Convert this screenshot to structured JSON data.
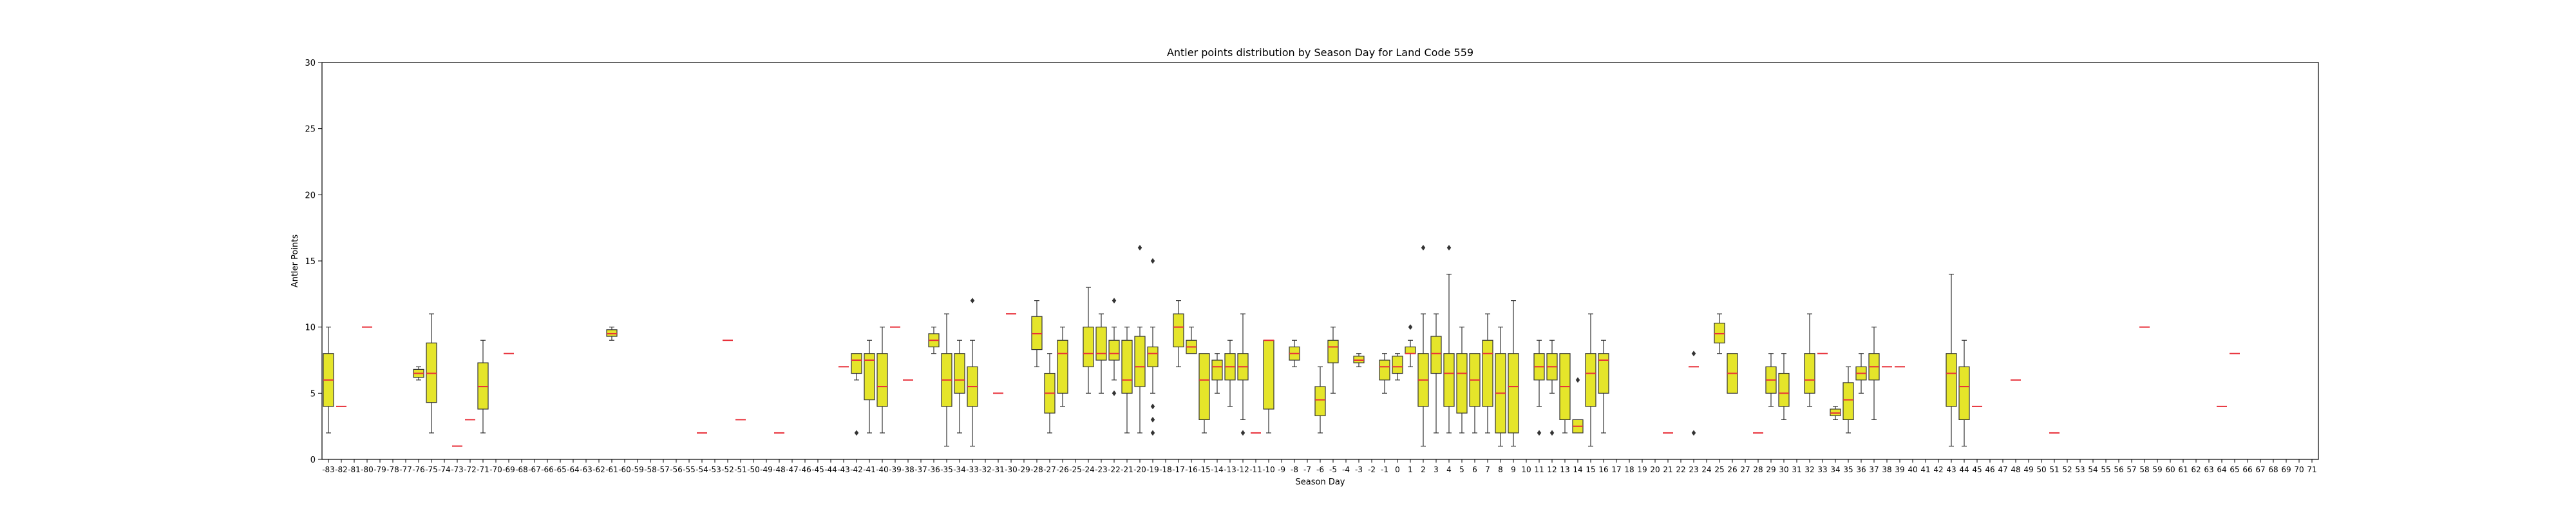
{
  "chart_data": {
    "type": "box",
    "title": "Antler points distribution by Season Day for Land Code 559",
    "xlabel": "Season Day",
    "ylabel": "Antler Points",
    "ylim": [
      0,
      30
    ],
    "yticks": [
      0,
      5,
      10,
      15,
      20,
      25,
      30
    ],
    "x_range": [
      -83,
      71
    ],
    "grid": false,
    "colors": {
      "box_fill": "#e5e52a",
      "median": "#e8303a",
      "edge": "#333333",
      "axis": "#000000"
    },
    "boxes": [
      {
        "day": -83,
        "q1": 4,
        "med": 6,
        "q3": 8,
        "lo": 2,
        "hi": 10
      },
      {
        "day": -82,
        "q1": 4,
        "med": 4,
        "q3": 4,
        "lo": 4,
        "hi": 4
      },
      {
        "day": -80,
        "q1": 10,
        "med": 10,
        "q3": 10,
        "lo": 10,
        "hi": 10
      },
      {
        "day": -76,
        "q1": 6.2,
        "med": 6.5,
        "q3": 6.8,
        "lo": 6,
        "hi": 7
      },
      {
        "day": -75,
        "q1": 4.3,
        "med": 6.5,
        "q3": 8.8,
        "lo": 2,
        "hi": 11
      },
      {
        "day": -73,
        "q1": 1,
        "med": 1,
        "q3": 1,
        "lo": 1,
        "hi": 1
      },
      {
        "day": -72,
        "q1": 3,
        "med": 3,
        "q3": 3,
        "lo": 3,
        "hi": 3
      },
      {
        "day": -71,
        "q1": 3.8,
        "med": 5.5,
        "q3": 7.3,
        "lo": 2,
        "hi": 9
      },
      {
        "day": -69,
        "q1": 8,
        "med": 8,
        "q3": 8,
        "lo": 8,
        "hi": 8
      },
      {
        "day": -61,
        "q1": 9.3,
        "med": 9.5,
        "q3": 9.8,
        "lo": 9,
        "hi": 10
      },
      {
        "day": -54,
        "q1": 2,
        "med": 2,
        "q3": 2,
        "lo": 2,
        "hi": 2
      },
      {
        "day": -52,
        "q1": 9,
        "med": 9,
        "q3": 9,
        "lo": 9,
        "hi": 9
      },
      {
        "day": -51,
        "q1": 3,
        "med": 3,
        "q3": 3,
        "lo": 3,
        "hi": 3
      },
      {
        "day": -48,
        "q1": 2,
        "med": 2,
        "q3": 2,
        "lo": 2,
        "hi": 2
      },
      {
        "day": -43,
        "q1": 7,
        "med": 7,
        "q3": 7,
        "lo": 7,
        "hi": 7
      },
      {
        "day": -42,
        "q1": 6.5,
        "med": 7.5,
        "q3": 8,
        "lo": 6,
        "hi": 8,
        "fliers": [
          2
        ]
      },
      {
        "day": -41,
        "q1": 4.5,
        "med": 7.5,
        "q3": 8,
        "lo": 2,
        "hi": 9
      },
      {
        "day": -40,
        "q1": 4,
        "med": 5.5,
        "q3": 8,
        "lo": 2,
        "hi": 10
      },
      {
        "day": -39,
        "q1": 10,
        "med": 10,
        "q3": 10,
        "lo": 10,
        "hi": 10
      },
      {
        "day": -38,
        "q1": 6,
        "med": 6,
        "q3": 6,
        "lo": 6,
        "hi": 6
      },
      {
        "day": -36,
        "q1": 8.5,
        "med": 9,
        "q3": 9.5,
        "lo": 8,
        "hi": 10
      },
      {
        "day": -35,
        "q1": 4,
        "med": 6,
        "q3": 8,
        "lo": 1,
        "hi": 11
      },
      {
        "day": -34,
        "q1": 5,
        "med": 6,
        "q3": 8,
        "lo": 2,
        "hi": 9
      },
      {
        "day": -33,
        "q1": 4,
        "med": 5.5,
        "q3": 7,
        "lo": 1,
        "hi": 9,
        "fliers": [
          12
        ]
      },
      {
        "day": -31,
        "q1": 5,
        "med": 5,
        "q3": 5,
        "lo": 5,
        "hi": 5
      },
      {
        "day": -30,
        "q1": 11,
        "med": 11,
        "q3": 11,
        "lo": 11,
        "hi": 11
      },
      {
        "day": -28,
        "q1": 8.3,
        "med": 9.5,
        "q3": 10.8,
        "lo": 7,
        "hi": 12
      },
      {
        "day": -27,
        "q1": 3.5,
        "med": 5,
        "q3": 6.5,
        "lo": 2,
        "hi": 8
      },
      {
        "day": -26,
        "q1": 5,
        "med": 8,
        "q3": 9,
        "lo": 4,
        "hi": 10
      },
      {
        "day": -24,
        "q1": 7,
        "med": 8,
        "q3": 10,
        "lo": 5,
        "hi": 13
      },
      {
        "day": -23,
        "q1": 7.5,
        "med": 8,
        "q3": 10,
        "lo": 5,
        "hi": 11
      },
      {
        "day": -22,
        "q1": 7.5,
        "med": 8,
        "q3": 9,
        "lo": 6,
        "hi": 10,
        "fliers": [
          12,
          5
        ]
      },
      {
        "day": -21,
        "q1": 5,
        "med": 6,
        "q3": 9,
        "lo": 2,
        "hi": 10
      },
      {
        "day": -20,
        "q1": 5.5,
        "med": 7,
        "q3": 9.3,
        "lo": 2,
        "hi": 10,
        "fliers": [
          16
        ]
      },
      {
        "day": -19,
        "q1": 7,
        "med": 8,
        "q3": 8.5,
        "lo": 5,
        "hi": 10,
        "fliers": [
          15,
          4,
          3,
          2
        ]
      },
      {
        "day": -17,
        "q1": 8.5,
        "med": 10,
        "q3": 11,
        "lo": 7,
        "hi": 12
      },
      {
        "day": -16,
        "q1": 8,
        "med": 8.5,
        "q3": 9,
        "lo": 8,
        "hi": 10
      },
      {
        "day": -15,
        "q1": 3,
        "med": 6,
        "q3": 8,
        "lo": 2,
        "hi": 8
      },
      {
        "day": -14,
        "q1": 6,
        "med": 7,
        "q3": 7.5,
        "lo": 5,
        "hi": 8
      },
      {
        "day": -13,
        "q1": 6,
        "med": 7,
        "q3": 8,
        "lo": 4,
        "hi": 9
      },
      {
        "day": -12,
        "q1": 6,
        "med": 7,
        "q3": 8,
        "lo": 3,
        "hi": 11,
        "fliers": [
          2
        ]
      },
      {
        "day": -11,
        "q1": 2,
        "med": 2,
        "q3": 2,
        "lo": 2,
        "hi": 2
      },
      {
        "day": -10,
        "q1": 3.8,
        "med": 9,
        "q3": 9,
        "lo": 2,
        "hi": 9
      },
      {
        "day": -8,
        "q1": 7.5,
        "med": 8,
        "q3": 8.5,
        "lo": 7,
        "hi": 9
      },
      {
        "day": -6,
        "q1": 3.3,
        "med": 4.5,
        "q3": 5.5,
        "lo": 2,
        "hi": 7
      },
      {
        "day": -5,
        "q1": 7.3,
        "med": 8.5,
        "q3": 9,
        "lo": 5,
        "hi": 10
      },
      {
        "day": -3,
        "q1": 7.3,
        "med": 7.5,
        "q3": 7.8,
        "lo": 7,
        "hi": 8
      },
      {
        "day": -1,
        "q1": 6,
        "med": 7,
        "q3": 7.5,
        "lo": 5,
        "hi": 8
      },
      {
        "day": 0,
        "q1": 6.5,
        "med": 7,
        "q3": 7.8,
        "lo": 6,
        "hi": 8
      },
      {
        "day": 1,
        "q1": 8,
        "med": 8,
        "q3": 8.5,
        "lo": 7,
        "hi": 9,
        "fliers": [
          10
        ]
      },
      {
        "day": 2,
        "q1": 4,
        "med": 6,
        "q3": 8,
        "lo": 1,
        "hi": 11,
        "fliers": [
          16
        ]
      },
      {
        "day": 3,
        "q1": 6.5,
        "med": 8,
        "q3": 9.3,
        "lo": 2,
        "hi": 11
      },
      {
        "day": 4,
        "q1": 4,
        "med": 6.5,
        "q3": 8,
        "lo": 2,
        "hi": 14,
        "fliers": [
          16
        ]
      },
      {
        "day": 5,
        "q1": 3.5,
        "med": 6.5,
        "q3": 8,
        "lo": 2,
        "hi": 10
      },
      {
        "day": 6,
        "q1": 4,
        "med": 6,
        "q3": 8,
        "lo": 2,
        "hi": 8
      },
      {
        "day": 7,
        "q1": 4,
        "med": 8,
        "q3": 9,
        "lo": 2,
        "hi": 11
      },
      {
        "day": 8,
        "q1": 2,
        "med": 5,
        "q3": 8,
        "lo": 1,
        "hi": 10
      },
      {
        "day": 9,
        "q1": 2,
        "med": 5.5,
        "q3": 8,
        "lo": 1,
        "hi": 12
      },
      {
        "day": 11,
        "q1": 6,
        "med": 7,
        "q3": 8,
        "lo": 4,
        "hi": 9,
        "fliers": [
          2
        ]
      },
      {
        "day": 12,
        "q1": 6,
        "med": 7,
        "q3": 8,
        "lo": 5,
        "hi": 9,
        "fliers": [
          2
        ]
      },
      {
        "day": 13,
        "q1": 3,
        "med": 5.5,
        "q3": 8,
        "lo": 2,
        "hi": 8
      },
      {
        "day": 14,
        "q1": 2,
        "med": 2.5,
        "q3": 3,
        "lo": 2,
        "hi": 3,
        "fliers": [
          6
        ]
      },
      {
        "day": 15,
        "q1": 4,
        "med": 6.5,
        "q3": 8,
        "lo": 1,
        "hi": 11
      },
      {
        "day": 16,
        "q1": 5,
        "med": 7.5,
        "q3": 8,
        "lo": 2,
        "hi": 9
      },
      {
        "day": 21,
        "q1": 2,
        "med": 2,
        "q3": 2,
        "lo": 2,
        "hi": 2
      },
      {
        "day": 23,
        "q1": 7,
        "med": 7,
        "q3": 7,
        "lo": 7,
        "hi": 7,
        "fliers": [
          8,
          2
        ]
      },
      {
        "day": 25,
        "q1": 8.8,
        "med": 9.5,
        "q3": 10.3,
        "lo": 8,
        "hi": 11
      },
      {
        "day": 26,
        "q1": 5,
        "med": 6.5,
        "q3": 8,
        "lo": 5,
        "hi": 8
      },
      {
        "day": 28,
        "q1": 2,
        "med": 2,
        "q3": 2,
        "lo": 2,
        "hi": 2
      },
      {
        "day": 29,
        "q1": 5,
        "med": 6,
        "q3": 7,
        "lo": 4,
        "hi": 8
      },
      {
        "day": 30,
        "q1": 4,
        "med": 5,
        "q3": 6.5,
        "lo": 3,
        "hi": 8
      },
      {
        "day": 32,
        "q1": 5,
        "med": 6,
        "q3": 8,
        "lo": 4,
        "hi": 11
      },
      {
        "day": 33,
        "q1": 8,
        "med": 8,
        "q3": 8,
        "lo": 8,
        "hi": 8
      },
      {
        "day": 34,
        "q1": 3.3,
        "med": 3.5,
        "q3": 3.8,
        "lo": 3,
        "hi": 4
      },
      {
        "day": 35,
        "q1": 3,
        "med": 4.5,
        "q3": 5.8,
        "lo": 2,
        "hi": 7
      },
      {
        "day": 36,
        "q1": 6,
        "med": 6.5,
        "q3": 7,
        "lo": 5,
        "hi": 8
      },
      {
        "day": 37,
        "q1": 6,
        "med": 7,
        "q3": 8,
        "lo": 3,
        "hi": 10
      },
      {
        "day": 38,
        "q1": 7,
        "med": 7,
        "q3": 7,
        "lo": 7,
        "hi": 7
      },
      {
        "day": 39,
        "q1": 7,
        "med": 7,
        "q3": 7,
        "lo": 7,
        "hi": 7
      },
      {
        "day": 43,
        "q1": 4,
        "med": 6.5,
        "q3": 8,
        "lo": 1,
        "hi": 14
      },
      {
        "day": 44,
        "q1": 3,
        "med": 5.5,
        "q3": 7,
        "lo": 1,
        "hi": 9
      },
      {
        "day": 45,
        "q1": 4,
        "med": 4,
        "q3": 4,
        "lo": 4,
        "hi": 4
      },
      {
        "day": 48,
        "q1": 6,
        "med": 6,
        "q3": 6,
        "lo": 6,
        "hi": 6
      },
      {
        "day": 51,
        "q1": 2,
        "med": 2,
        "q3": 2,
        "lo": 2,
        "hi": 2
      },
      {
        "day": 58,
        "q1": 10,
        "med": 10,
        "q3": 10,
        "lo": 10,
        "hi": 10
      },
      {
        "day": 64,
        "q1": 4,
        "med": 4,
        "q3": 4,
        "lo": 4,
        "hi": 4
      },
      {
        "day": 65,
        "q1": 8,
        "med": 8,
        "q3": 8,
        "lo": 8,
        "hi": 8
      }
    ]
  }
}
